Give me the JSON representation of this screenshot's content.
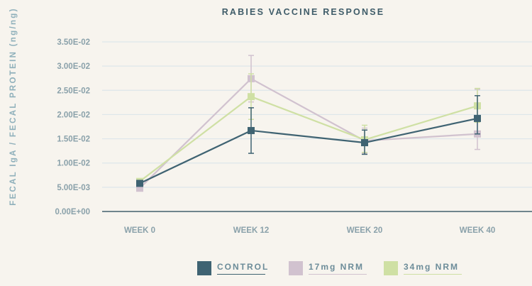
{
  "chart_data": {
    "type": "line",
    "title": "RABIES VACCINE RESPONSE",
    "xlabel": "",
    "ylabel": "FECAL IgA / FECAL PROTEIN (ng/ng)",
    "categories": [
      "WEEK 0",
      "WEEK 12",
      "WEEK 20",
      "WEEK 40"
    ],
    "ylim": [
      0,
      0.035
    ],
    "yticks": [
      "0.00E+00",
      "5.00E-03",
      "1.00E-02",
      "1.50E-02",
      "2.00E-02",
      "2.50E-02",
      "3.00E-02",
      "3.50E-02"
    ],
    "grid": true,
    "legend_position": "bottom",
    "series": [
      {
        "name": "CONTROL",
        "color": "#3f6372",
        "values": [
          0.0058,
          0.0167,
          0.0142,
          0.0192
        ],
        "error_low": [
          0.0058,
          0.012,
          0.0118,
          0.016
        ],
        "error_high": [
          0.0058,
          0.0214,
          0.0168,
          0.0239
        ]
      },
      {
        "name": "17mg NRM",
        "color": "#d1c2cf",
        "values": [
          0.0048,
          0.0274,
          0.0146,
          0.016
        ],
        "error_low": [
          0.0048,
          0.0226,
          0.012,
          0.0128
        ],
        "error_high": [
          0.0048,
          0.0322,
          0.0172,
          0.0252
        ]
      },
      {
        "name": "34mg NRM",
        "color": "#cfe0a4",
        "values": [
          0.0062,
          0.0237,
          0.0148,
          0.0218
        ],
        "error_low": [
          0.0062,
          0.019,
          0.0122,
          0.0184
        ],
        "error_high": [
          0.0062,
          0.0284,
          0.0178,
          0.0254
        ]
      }
    ]
  },
  "legend": [
    {
      "label": "CONTROL",
      "color": "#3f6372"
    },
    {
      "label": "17mg NRM",
      "color": "#d1c2cf"
    },
    {
      "label": "34mg NRM",
      "color": "#cfe0a4"
    }
  ]
}
